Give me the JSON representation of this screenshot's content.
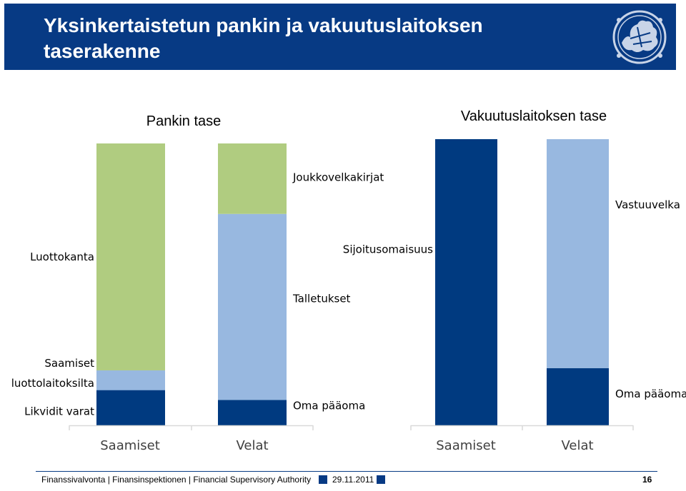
{
  "header": {
    "title": "Yksinkertaistetun pankin ja vakuutuslaitoksen taserakenne",
    "logo_icon": "lion-coat-of-arms-icon"
  },
  "colors": {
    "header_bg": "#073a84",
    "dark_blue": "#003a80",
    "light_blue": "#98b8e0",
    "green": "#b0cc80",
    "baseline": "#d9d9d9"
  },
  "chart_data": [
    {
      "type": "bar",
      "stacked": true,
      "title": "Pankin tase",
      "categories": [
        "Saamiset",
        "Velat"
      ],
      "ylim": [
        0,
        100
      ],
      "series": [
        {
          "name": "Likvidit varat",
          "color": "#003a80",
          "values": [
            12.5,
            0
          ]
        },
        {
          "name": "Saamiset luottolaitoksilta",
          "color": "#98b8e0",
          "values": [
            7,
            0
          ]
        },
        {
          "name": "Luottokanta",
          "color": "#b0cc80",
          "values": [
            80.5,
            0
          ]
        },
        {
          "name": "Oma pääoma",
          "color": "#003a80",
          "values": [
            0,
            9
          ]
        },
        {
          "name": "Talletukset",
          "color": "#98b8e0",
          "values": [
            0,
            66
          ]
        },
        {
          "name": "Joukkovelkakirjat",
          "color": "#b0cc80",
          "values": [
            0,
            25
          ]
        }
      ],
      "labels": [
        {
          "text": "Luottokanta",
          "bar": 0,
          "side": "left",
          "at": 59.75
        },
        {
          "text": "Saamiset",
          "bar": 0,
          "side": "left",
          "at": 22
        },
        {
          "text": "luottolaitoksilta",
          "bar": 0,
          "side": "left",
          "at": 15
        },
        {
          "text": "Likvidit varat",
          "bar": 0,
          "side": "left",
          "at": 5
        },
        {
          "text": "Joukkovelkakirjat",
          "bar": 1,
          "side": "right",
          "at": 88
        },
        {
          "text": "Talletukset",
          "bar": 1,
          "side": "right",
          "at": 45
        },
        {
          "text": "Oma pääoma",
          "bar": 1,
          "side": "right",
          "at": 7
        }
      ]
    },
    {
      "type": "bar",
      "stacked": true,
      "title": "Vakuutuslaitoksen tase",
      "categories": [
        "Saamiset",
        "Velat"
      ],
      "ylim": [
        0,
        100
      ],
      "series": [
        {
          "name": "Sijoitusomaisuus",
          "color": "#003a80",
          "values": [
            100,
            0
          ]
        },
        {
          "name": "Oma pääoma",
          "color": "#003a80",
          "values": [
            0,
            20
          ]
        },
        {
          "name": "Vastuuvelka",
          "color": "#98b8e0",
          "values": [
            0,
            80
          ]
        }
      ],
      "labels": [
        {
          "text": "Sijoitusomaisuus",
          "bar": 0,
          "side": "left",
          "at": 61.5
        },
        {
          "text": "Vastuuvelka",
          "bar": 1,
          "side": "right",
          "at": 77
        },
        {
          "text": "Oma pääoma",
          "bar": 1,
          "side": "right",
          "at": 11
        }
      ]
    }
  ],
  "footer": {
    "organization": "Finanssivalvonta | Finansinspektionen | Financial Supervisory Authority",
    "date": "29.11.2011",
    "page_number": "16"
  }
}
